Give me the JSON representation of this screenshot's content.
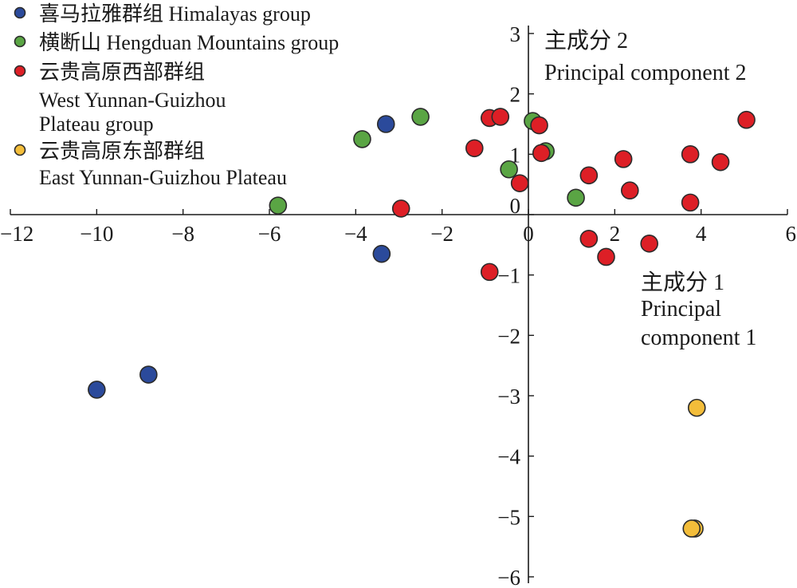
{
  "chart_data": {
    "type": "scatter",
    "title": "",
    "xlabel": [
      "主成分 1",
      "Principal",
      "component 1"
    ],
    "ylabel": [
      "主成分 2",
      "Principal component 2"
    ],
    "xlim": [
      -12,
      6
    ],
    "ylim": [
      -6,
      3
    ],
    "xticks": [
      {
        "value": -12,
        "label": "−12"
      },
      {
        "value": -10,
        "label": "−10"
      },
      {
        "value": -8,
        "label": "−8"
      },
      {
        "value": -6,
        "label": "−6"
      },
      {
        "value": -4,
        "label": "−4"
      },
      {
        "value": -2,
        "label": "−2"
      },
      {
        "value": 0,
        "label": "0"
      },
      {
        "value": 2,
        "label": "2"
      },
      {
        "value": 4,
        "label": "4"
      },
      {
        "value": 6,
        "label": "6"
      }
    ],
    "yticks": [
      {
        "value": 3,
        "label": "3"
      },
      {
        "value": 2,
        "label": "2"
      },
      {
        "value": 1,
        "label": "1"
      },
      {
        "value": 0,
        "label": "0"
      },
      {
        "value": -1,
        "label": "−1"
      },
      {
        "value": -2,
        "label": "−2"
      },
      {
        "value": -3,
        "label": "−3"
      },
      {
        "value": -4,
        "label": "−4"
      },
      {
        "value": -5,
        "label": "−5"
      },
      {
        "value": -6,
        "label": "−6"
      }
    ],
    "grid": false,
    "legend_position": "top-left",
    "series": [
      {
        "name": [
          "喜马拉雅群组 Himalayas group"
        ],
        "color": "#2b4a9b",
        "points": [
          {
            "x": -3.3,
            "y": 1.5
          },
          {
            "x": -3.4,
            "y": -0.65
          },
          {
            "x": -8.8,
            "y": -2.65
          },
          {
            "x": -10.0,
            "y": -2.9
          }
        ]
      },
      {
        "name": [
          "横断山 Hengduan Mountains group"
        ],
        "color": "#5aa544",
        "points": [
          {
            "x": -2.5,
            "y": 1.62
          },
          {
            "x": -3.85,
            "y": 1.25
          },
          {
            "x": -5.8,
            "y": 0.15
          },
          {
            "x": 0.1,
            "y": 1.55
          },
          {
            "x": 0.4,
            "y": 1.05
          },
          {
            "x": -0.45,
            "y": 0.75
          },
          {
            "x": 1.1,
            "y": 0.28
          }
        ]
      },
      {
        "name": [
          "云贵高原西部群组",
          "West Yunnan-Guizhou",
          "Plateau group"
        ],
        "color": "#dd1f26",
        "points": [
          {
            "x": -0.9,
            "y": 1.6
          },
          {
            "x": -0.65,
            "y": 1.62
          },
          {
            "x": 0.25,
            "y": 1.48
          },
          {
            "x": -1.25,
            "y": 1.1
          },
          {
            "x": 0.3,
            "y": 1.02
          },
          {
            "x": -0.2,
            "y": 0.52
          },
          {
            "x": -2.95,
            "y": 0.1
          },
          {
            "x": 1.4,
            "y": 0.65
          },
          {
            "x": 2.2,
            "y": 0.92
          },
          {
            "x": 2.35,
            "y": 0.4
          },
          {
            "x": 3.75,
            "y": 1.0
          },
          {
            "x": 4.45,
            "y": 0.87
          },
          {
            "x": 5.05,
            "y": 1.57
          },
          {
            "x": 3.75,
            "y": 0.2
          },
          {
            "x": 1.4,
            "y": -0.4
          },
          {
            "x": 1.8,
            "y": -0.7
          },
          {
            "x": 2.8,
            "y": -0.48
          },
          {
            "x": -0.9,
            "y": -0.95
          }
        ]
      },
      {
        "name": [
          "云贵高原东部群组",
          "East Yunnan-Guizhou Plateau"
        ],
        "color": "#f3bd3a",
        "points": [
          {
            "x": 3.9,
            "y": -3.2
          },
          {
            "x": 3.85,
            "y": -5.2
          },
          {
            "x": 3.78,
            "y": -5.2
          }
        ]
      }
    ]
  }
}
